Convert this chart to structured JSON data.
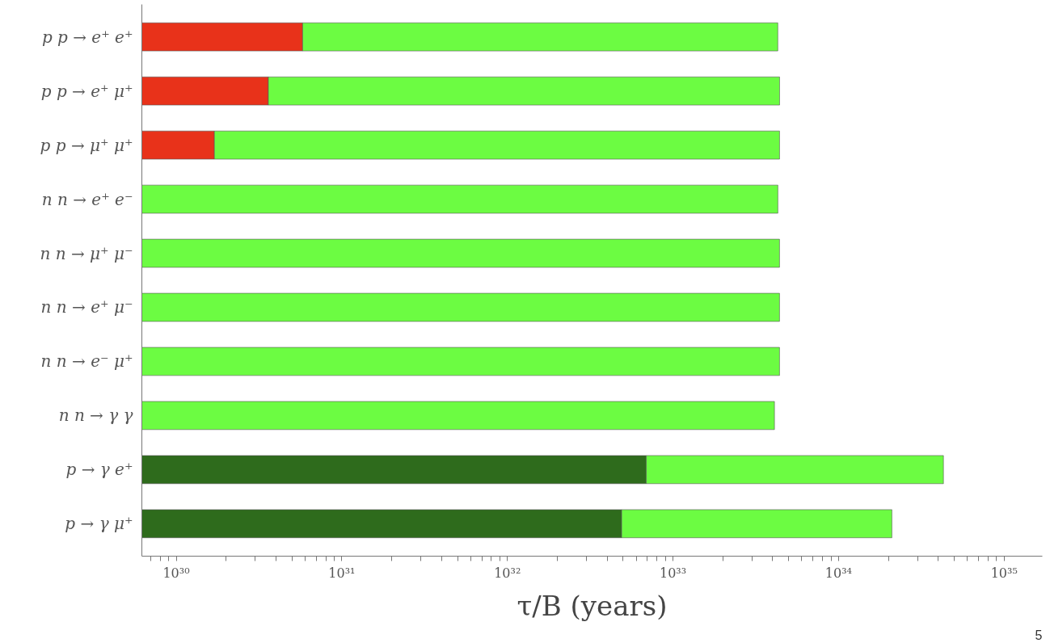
{
  "chart_data": {
    "type": "bar",
    "orientation": "horizontal",
    "log": "x",
    "grid": false,
    "legend": false,
    "categories": [
      "p p → e⁺ e⁺",
      "p p → e⁺ μ⁺",
      "p p → μ⁺ μ⁺",
      "n n → e⁺ e⁻",
      "n n → μ⁺ μ⁻",
      "n n → e⁺ μ⁻",
      "n n → e⁻ μ⁺",
      "n n → γ γ",
      "p → γ e⁺",
      "p → γ μ⁺"
    ],
    "stacked": true,
    "series": [
      {
        "colors": [
          "#e8321a",
          "#e8321a",
          "#e8321a",
          null,
          null,
          null,
          null,
          null,
          "#2e6b1c",
          "#2e6b1c"
        ],
        "values": [
          5.8e+30,
          3.6e+30,
          1.7e+30,
          null,
          null,
          null,
          null,
          null,
          6.9e+32,
          4.9e+32
        ]
      },
      {
        "color": "#6cfc42",
        "values": [
          4.29e+33,
          4.4e+33,
          4.4e+33,
          4.3e+33,
          4.4e+33,
          4.4e+33,
          4.4e+33,
          4.1e+33,
          4.23e+34,
          2.05e+34
        ]
      }
    ],
    "xlabel": "τ/B (years)",
    "xlim": [
      6.2e+29,
      1.7e+35
    ],
    "xticks": [
      {
        "value": 7e+29,
        "label": null
      },
      {
        "value": 8e+29,
        "label": null
      },
      {
        "value": 9e+29,
        "label": null
      },
      {
        "value": 1e+30,
        "label": "10³⁰"
      },
      {
        "value": 2e+30,
        "label": null
      },
      {
        "value": 3e+30,
        "label": null
      },
      {
        "value": 4e+30,
        "label": null
      },
      {
        "value": 5e+30,
        "label": null
      },
      {
        "value": 6e+30,
        "label": null
      },
      {
        "value": 7e+30,
        "label": null
      },
      {
        "value": 8e+30,
        "label": null
      },
      {
        "value": 9e+30,
        "label": null
      },
      {
        "value": 1e+31,
        "label": "10³¹"
      },
      {
        "value": 2e+31,
        "label": null
      },
      {
        "value": 3e+31,
        "label": null
      },
      {
        "value": 4e+31,
        "label": null
      },
      {
        "value": 5e+31,
        "label": null
      },
      {
        "value": 6e+31,
        "label": null
      },
      {
        "value": 7e+31,
        "label": null
      },
      {
        "value": 8e+31,
        "label": null
      },
      {
        "value": 9e+31,
        "label": null
      },
      {
        "value": 1e+32,
        "label": "10³²"
      },
      {
        "value": 2e+32,
        "label": null
      },
      {
        "value": 3e+32,
        "label": null
      },
      {
        "value": 4e+32,
        "label": null
      },
      {
        "value": 5e+32,
        "label": null
      },
      {
        "value": 6e+32,
        "label": null
      },
      {
        "value": 7e+32,
        "label": null
      },
      {
        "value": 8e+32,
        "label": null
      },
      {
        "value": 9e+32,
        "label": null
      },
      {
        "value": 1e+33,
        "label": "10³³"
      },
      {
        "value": 2e+33,
        "label": null
      },
      {
        "value": 3e+33,
        "label": null
      },
      {
        "value": 4e+33,
        "label": null
      },
      {
        "value": 5e+33,
        "label": null
      },
      {
        "value": 6e+33,
        "label": null
      },
      {
        "value": 7e+33,
        "label": null
      },
      {
        "value": 8e+33,
        "label": null
      },
      {
        "value": 9e+33,
        "label": null
      },
      {
        "value": 1e+34,
        "label": "10³⁴"
      },
      {
        "value": 2e+34,
        "label": null
      },
      {
        "value": 3e+34,
        "label": null
      },
      {
        "value": 4e+34,
        "label": null
      },
      {
        "value": 5e+34,
        "label": null
      },
      {
        "value": 6e+34,
        "label": null
      },
      {
        "value": 7e+34,
        "label": null
      },
      {
        "value": 8e+34,
        "label": null
      },
      {
        "value": 9e+34,
        "label": null
      },
      {
        "value": 1e+35,
        "label": "10³⁵"
      }
    ],
    "annotations": [
      "5"
    ]
  }
}
